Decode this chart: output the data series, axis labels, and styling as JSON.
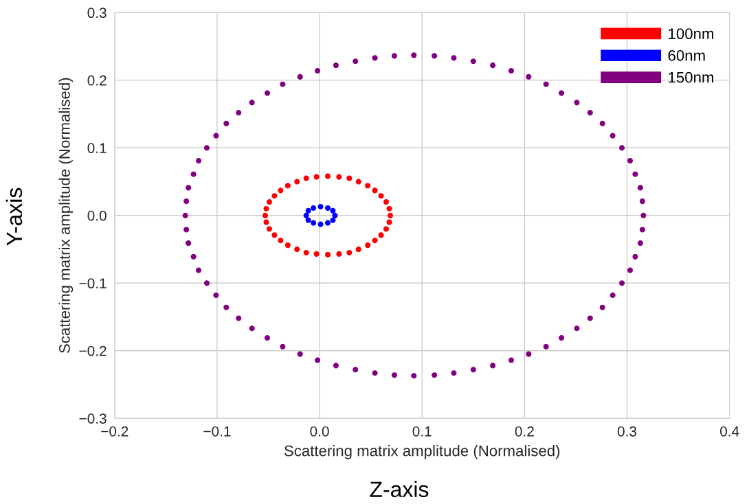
{
  "chart_data": {
    "type": "scatter",
    "xlabel": "Scattering matrix amplitude (Normalised)",
    "ylabel": "Scattering matrix amplitude (Normalised)",
    "annotations": [
      "Z-axis",
      "Y-axis"
    ],
    "xlim": [
      -0.2,
      0.4
    ],
    "ylim": [
      -0.3,
      0.3
    ],
    "xticks": [
      {
        "value": -0.2,
        "label": "−0.2"
      },
      {
        "value": -0.1,
        "label": "−0.1"
      },
      {
        "value": 0.0,
        "label": "0.0"
      },
      {
        "value": 0.1,
        "label": "0.1"
      },
      {
        "value": 0.2,
        "label": "0.2"
      },
      {
        "value": 0.3,
        "label": "0.3"
      },
      {
        "value": 0.4,
        "label": "0.4"
      }
    ],
    "yticks": [
      {
        "value": -0.3,
        "label": "−0.3"
      },
      {
        "value": -0.2,
        "label": "−0.2"
      },
      {
        "value": -0.1,
        "label": "−0.1"
      },
      {
        "value": 0.0,
        "label": "0.0"
      },
      {
        "value": 0.1,
        "label": "0.1"
      },
      {
        "value": 0.2,
        "label": "0.2"
      },
      {
        "value": 0.3,
        "label": "0.3"
      }
    ],
    "grid": true,
    "legend": "top right",
    "marker": "circle",
    "series": [
      {
        "name": "100nm",
        "color": "#ff0000",
        "x": [
          0.069,
          0.068,
          0.065,
          0.06,
          0.054,
          0.047,
          0.038,
          0.029,
          0.019,
          0.008,
          -0.003,
          -0.013,
          -0.022,
          -0.031,
          -0.038,
          -0.044,
          -0.049,
          -0.052,
          -0.053,
          -0.052,
          -0.049,
          -0.044,
          -0.038,
          -0.031,
          -0.022,
          -0.013,
          -0.003,
          0.008,
          0.019,
          0.029,
          0.038,
          0.047,
          0.054,
          0.06,
          0.065,
          0.068
        ],
        "values": [
          0,
          0.01,
          0.02,
          0.029,
          0.037,
          0.044,
          0.05,
          0.055,
          0.057,
          0.058,
          0.057,
          0.055,
          0.05,
          0.044,
          0.037,
          0.029,
          0.02,
          0.01,
          0,
          -0.01,
          -0.02,
          -0.029,
          -0.037,
          -0.044,
          -0.05,
          -0.055,
          -0.057,
          -0.058,
          -0.057,
          -0.055,
          -0.05,
          -0.044,
          -0.037,
          -0.029,
          -0.02,
          -0.01
        ]
      },
      {
        "name": "60nm",
        "color": "#0000ff",
        "x": [
          0.015,
          0.013,
          0.008,
          0.001,
          -0.006,
          -0.011,
          -0.013,
          -0.011,
          -0.006,
          0.001,
          0.008,
          0.013
        ],
        "values": [
          0,
          0.007,
          0.011,
          0.013,
          0.011,
          0.007,
          0,
          -0.007,
          -0.011,
          -0.013,
          -0.011,
          -0.007
        ]
      },
      {
        "name": "150nm",
        "color": "#800080",
        "x": [
          0.316,
          0.315,
          0.313,
          0.308,
          0.303,
          0.295,
          0.286,
          0.276,
          0.264,
          0.251,
          0.236,
          0.221,
          0.204,
          0.187,
          0.169,
          0.15,
          0.131,
          0.112,
          0.092,
          0.073,
          0.054,
          0.035,
          0.016,
          -0.002,
          -0.019,
          -0.036,
          -0.051,
          -0.066,
          -0.079,
          -0.091,
          -0.101,
          -0.11,
          -0.118,
          -0.123,
          -0.128,
          -0.13,
          -0.131,
          -0.13,
          -0.128,
          -0.123,
          -0.118,
          -0.11,
          -0.101,
          -0.091,
          -0.079,
          -0.066,
          -0.051,
          -0.036,
          -0.019,
          -0.002,
          0.016,
          0.035,
          0.054,
          0.073,
          0.092,
          0.112,
          0.131,
          0.15,
          0.169,
          0.187,
          0.204,
          0.221,
          0.236,
          0.251,
          0.264,
          0.276,
          0.286,
          0.295,
          0.303,
          0.308,
          0.313,
          0.315
        ],
        "values": [
          0,
          0.021,
          0.041,
          0.061,
          0.081,
          0.1,
          0.118,
          0.136,
          0.152,
          0.167,
          0.181,
          0.194,
          0.205,
          0.214,
          0.222,
          0.228,
          0.233,
          0.236,
          0.237,
          0.236,
          0.233,
          0.228,
          0.222,
          0.214,
          0.205,
          0.194,
          0.181,
          0.167,
          0.152,
          0.136,
          0.118,
          0.1,
          0.081,
          0.061,
          0.041,
          0.021,
          0,
          -0.021,
          -0.041,
          -0.061,
          -0.081,
          -0.1,
          -0.118,
          -0.136,
          -0.152,
          -0.167,
          -0.181,
          -0.194,
          -0.205,
          -0.214,
          -0.222,
          -0.228,
          -0.233,
          -0.236,
          -0.237,
          -0.236,
          -0.233,
          -0.228,
          -0.222,
          -0.214,
          -0.205,
          -0.194,
          -0.181,
          -0.167,
          -0.152,
          -0.136,
          -0.118,
          -0.1,
          -0.081,
          -0.061,
          -0.041,
          -0.021
        ]
      }
    ]
  }
}
